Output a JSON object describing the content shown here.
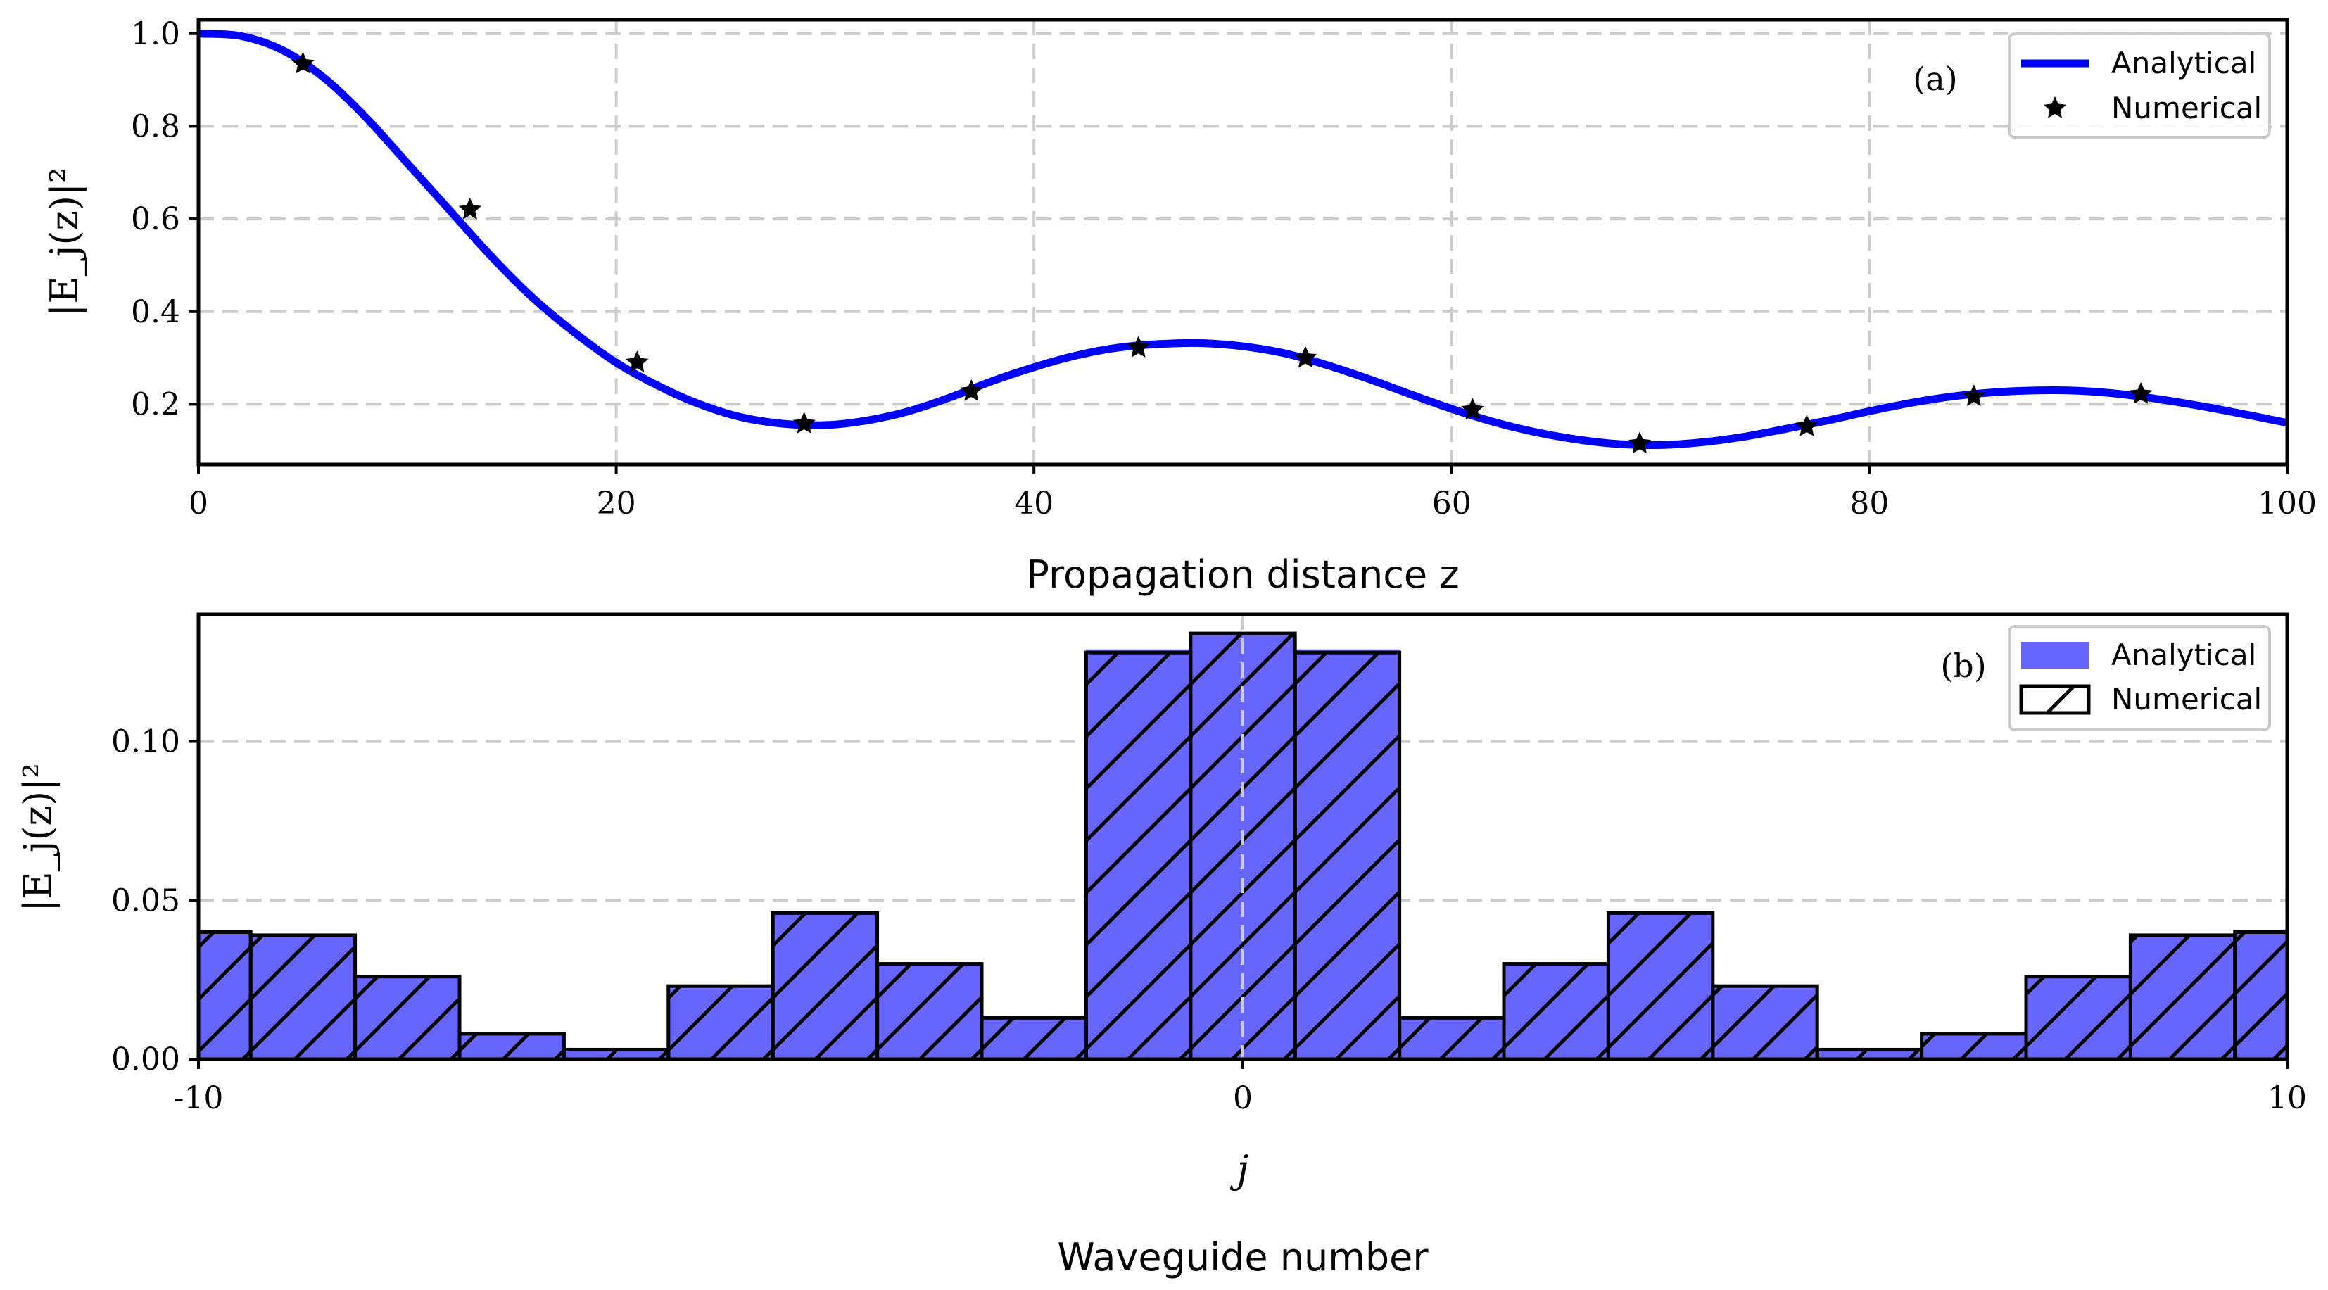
{
  "colors": {
    "analytical": "#0000ff",
    "bar_fill": "#6666ff",
    "grid": "#cccccc",
    "axis": "#000000",
    "marker": "#000000"
  },
  "chart_data": [
    {
      "type": "line",
      "panel_label": "(a)",
      "xlabel": "Propagation distance z",
      "ylabel": "|E_j(z)|²",
      "xlim": [
        0,
        100
      ],
      "ylim": [
        0.07,
        1.03
      ],
      "x_ticks": [
        0,
        20,
        40,
        60,
        80,
        100
      ],
      "x_tick_labels": [
        "0",
        "20",
        "40",
        "60",
        "80",
        "100"
      ],
      "y_ticks": [
        0.2,
        0.4,
        0.6,
        0.8,
        1.0
      ],
      "y_tick_labels": [
        "0.2",
        "0.4",
        "0.6",
        "0.8",
        "1.0"
      ],
      "grid": true,
      "legend_position": "top-right",
      "series": [
        {
          "name": "Analytical",
          "style": "line",
          "x": [
            0,
            2,
            4,
            6,
            8,
            10,
            12,
            14,
            16,
            18,
            20,
            22,
            24,
            26,
            28,
            30,
            32,
            34,
            36,
            38,
            40,
            42,
            44,
            46,
            48,
            50,
            52,
            54,
            56,
            58,
            60,
            62,
            64,
            66,
            68,
            70,
            72,
            74,
            76,
            78,
            80,
            82,
            84,
            86,
            88,
            90,
            92,
            94,
            96,
            98,
            100
          ],
          "y": [
            1.0,
            0.995,
            0.965,
            0.905,
            0.82,
            0.72,
            0.62,
            0.52,
            0.43,
            0.355,
            0.29,
            0.24,
            0.2,
            0.172,
            0.158,
            0.155,
            0.165,
            0.185,
            0.215,
            0.25,
            0.28,
            0.305,
            0.322,
            0.33,
            0.332,
            0.325,
            0.31,
            0.285,
            0.255,
            0.222,
            0.19,
            0.162,
            0.14,
            0.124,
            0.114,
            0.112,
            0.118,
            0.13,
            0.147,
            0.165,
            0.185,
            0.203,
            0.217,
            0.226,
            0.23,
            0.229,
            0.222,
            0.21,
            0.195,
            0.178,
            0.16
          ]
        },
        {
          "name": "Numerical",
          "style": "marker",
          "x": [
            5,
            13,
            21,
            29,
            37,
            45,
            53,
            61,
            69,
            77,
            85,
            93
          ],
          "y": [
            0.935,
            0.62,
            0.29,
            0.158,
            0.228,
            0.322,
            0.3,
            0.188,
            0.115,
            0.152,
            0.217,
            0.222
          ]
        }
      ]
    },
    {
      "type": "bar",
      "panel_label": "(b)",
      "xlabel": "j",
      "subtitle": "Waveguide number",
      "ylabel": "|E_j(z)|²",
      "xlim": [
        -10,
        10
      ],
      "ylim": [
        0,
        0.14
      ],
      "x_ticks": [
        -10,
        0,
        10
      ],
      "x_tick_labels": [
        "-10",
        "0",
        "10"
      ],
      "y_ticks": [
        0.0,
        0.05,
        0.1
      ],
      "y_tick_labels": [
        "0.00",
        "0.05",
        "0.10"
      ],
      "grid": true,
      "legend_position": "top-right",
      "categories": [
        -10,
        -9,
        -8,
        -7,
        -6,
        -5,
        -4,
        -3,
        -2,
        -1,
        0,
        1,
        2,
        3,
        4,
        5,
        6,
        7,
        8,
        9,
        10
      ],
      "series": [
        {
          "name": "Analytical",
          "style": "filled",
          "values": [
            0.04,
            0.039,
            0.026,
            0.008,
            0.003,
            0.023,
            0.046,
            0.03,
            0.013,
            0.129,
            0.134,
            0.129,
            0.013,
            0.03,
            0.046,
            0.023,
            0.003,
            0.008,
            0.026,
            0.039,
            0.04
          ]
        },
        {
          "name": "Numerical",
          "style": "hatched",
          "values": [
            0.04,
            0.039,
            0.026,
            0.008,
            0.003,
            0.023,
            0.046,
            0.03,
            0.013,
            0.128,
            0.134,
            0.128,
            0.013,
            0.03,
            0.046,
            0.023,
            0.003,
            0.008,
            0.026,
            0.039,
            0.04
          ]
        }
      ]
    }
  ]
}
